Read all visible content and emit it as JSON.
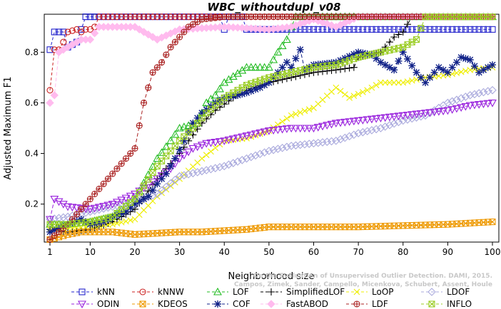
{
  "chart_data": {
    "type": "line",
    "title": "WBC_withoutdupl_v08",
    "xlabel": "Neighborhood size",
    "ylabel": "Adjusted Maximum F1",
    "xlim": [
      1,
      100
    ],
    "ylim": [
      0.05,
      0.95
    ],
    "xticks": [
      1,
      10,
      20,
      30,
      40,
      50,
      60,
      70,
      80,
      90,
      100
    ],
    "yticks": [
      0.2,
      0.4,
      0.6,
      0.8
    ],
    "legend_position": "bottom",
    "watermark": [
      "Campos, Zimek, Sander, Campello, Micenkova, Schubert, Assent, Houle",
      "On the Evaluation of Unsupervised Outlier Detection. DAMI, 2015."
    ],
    "series": [
      {
        "name": "kNN",
        "color": "#2222cc",
        "marker": "square",
        "dash": "4,3",
        "points": [
          [
            1,
            0.81
          ],
          [
            2,
            0.88
          ],
          [
            4,
            0.88
          ],
          [
            5,
            0.82
          ],
          [
            7,
            0.84
          ],
          [
            8,
            0.89
          ],
          [
            9,
            0.94
          ],
          [
            39,
            0.94
          ],
          [
            40,
            0.89
          ],
          [
            41,
            0.94
          ],
          [
            44,
            0.94
          ],
          [
            45,
            0.89
          ],
          [
            100,
            0.89
          ]
        ]
      },
      {
        "name": "kNNW",
        "color": "#cc2222",
        "marker": "circle",
        "dash": "4,3",
        "points": [
          [
            1,
            0.65
          ],
          [
            2,
            0.81
          ],
          [
            3,
            0.81
          ],
          [
            4,
            0.84
          ],
          [
            5,
            0.88
          ],
          [
            7,
            0.89
          ],
          [
            8,
            0.88
          ],
          [
            9,
            0.89
          ],
          [
            10,
            0.89
          ],
          [
            11,
            0.9
          ],
          [
            12,
            0.94
          ],
          [
            100,
            0.94
          ]
        ]
      },
      {
        "name": "LOF",
        "color": "#22bb22",
        "marker": "triangle-up",
        "dash": "5,3",
        "points": [
          [
            1,
            0.12
          ],
          [
            5,
            0.12
          ],
          [
            10,
            0.13
          ],
          [
            15,
            0.15
          ],
          [
            20,
            0.22
          ],
          [
            25,
            0.38
          ],
          [
            28,
            0.45
          ],
          [
            30,
            0.5
          ],
          [
            34,
            0.52
          ],
          [
            36,
            0.6
          ],
          [
            38,
            0.63
          ],
          [
            40,
            0.68
          ],
          [
            45,
            0.74
          ],
          [
            50,
            0.74
          ],
          [
            52,
            0.8
          ],
          [
            54,
            0.85
          ],
          [
            55,
            0.9
          ],
          [
            56,
            0.94
          ],
          [
            100,
            0.94
          ]
        ]
      },
      {
        "name": "SimplifiedLOF",
        "color": "#000000",
        "marker": "plus",
        "dash": "5,3",
        "points": [
          [
            1,
            0.1
          ],
          [
            5,
            0.09
          ],
          [
            10,
            0.1
          ],
          [
            15,
            0.13
          ],
          [
            20,
            0.18
          ],
          [
            25,
            0.3
          ],
          [
            28,
            0.36
          ],
          [
            30,
            0.4
          ],
          [
            32,
            0.45
          ],
          [
            35,
            0.52
          ],
          [
            38,
            0.57
          ],
          [
            42,
            0.62
          ],
          [
            45,
            0.65
          ],
          [
            50,
            0.68
          ],
          [
            55,
            0.7
          ],
          [
            60,
            0.72
          ],
          [
            65,
            0.73
          ],
          [
            69,
            0.74
          ],
          [
            70,
            0.78
          ],
          [
            75,
            0.8
          ],
          [
            78,
            0.86
          ],
          [
            80,
            0.88
          ],
          [
            82,
            0.94
          ],
          [
            100,
            0.94
          ]
        ]
      },
      {
        "name": "LoOP",
        "color": "#eeee00",
        "marker": "cross",
        "dash": "5,3",
        "points": [
          [
            1,
            0.1
          ],
          [
            10,
            0.11
          ],
          [
            15,
            0.12
          ],
          [
            20,
            0.14
          ],
          [
            25,
            0.23
          ],
          [
            30,
            0.3
          ],
          [
            35,
            0.38
          ],
          [
            40,
            0.45
          ],
          [
            45,
            0.46
          ],
          [
            50,
            0.49
          ],
          [
            55,
            0.55
          ],
          [
            60,
            0.58
          ],
          [
            65,
            0.66
          ],
          [
            68,
            0.62
          ],
          [
            72,
            0.65
          ],
          [
            75,
            0.68
          ],
          [
            80,
            0.68
          ],
          [
            85,
            0.7
          ],
          [
            90,
            0.71
          ],
          [
            95,
            0.73
          ],
          [
            100,
            0.74
          ]
        ]
      },
      {
        "name": "LDOF",
        "color": "#aaaadd",
        "marker": "diamond",
        "dash": "5,3",
        "points": [
          [
            1,
            0.14
          ],
          [
            5,
            0.15
          ],
          [
            10,
            0.17
          ],
          [
            15,
            0.19
          ],
          [
            20,
            0.21
          ],
          [
            25,
            0.24
          ],
          [
            30,
            0.31
          ],
          [
            35,
            0.33
          ],
          [
            40,
            0.35
          ],
          [
            45,
            0.38
          ],
          [
            50,
            0.41
          ],
          [
            55,
            0.43
          ],
          [
            60,
            0.44
          ],
          [
            65,
            0.45
          ],
          [
            70,
            0.48
          ],
          [
            75,
            0.5
          ],
          [
            80,
            0.53
          ],
          [
            85,
            0.55
          ],
          [
            90,
            0.6
          ],
          [
            95,
            0.63
          ],
          [
            100,
            0.65
          ]
        ]
      },
      {
        "name": "ODIN",
        "color": "#9922dd",
        "marker": "triangle-down",
        "dash": "5,3",
        "points": [
          [
            1,
            0.14
          ],
          [
            2,
            0.22
          ],
          [
            5,
            0.19
          ],
          [
            10,
            0.18
          ],
          [
            15,
            0.2
          ],
          [
            20,
            0.24
          ],
          [
            25,
            0.3
          ],
          [
            28,
            0.34
          ],
          [
            30,
            0.38
          ],
          [
            33,
            0.42
          ],
          [
            36,
            0.44
          ],
          [
            40,
            0.45
          ],
          [
            45,
            0.47
          ],
          [
            50,
            0.49
          ],
          [
            55,
            0.5
          ],
          [
            60,
            0.5
          ],
          [
            65,
            0.52
          ],
          [
            70,
            0.53
          ],
          [
            75,
            0.54
          ],
          [
            80,
            0.55
          ],
          [
            85,
            0.56
          ],
          [
            90,
            0.57
          ],
          [
            95,
            0.59
          ],
          [
            100,
            0.6
          ]
        ]
      },
      {
        "name": "KDEOS",
        "color": "#ee9900",
        "marker": "x-square",
        "dash": "5,3",
        "points": [
          [
            1,
            0.06
          ],
          [
            3,
            0.07
          ],
          [
            5,
            0.08
          ],
          [
            8,
            0.09
          ],
          [
            15,
            0.09
          ],
          [
            20,
            0.08
          ],
          [
            25,
            0.085
          ],
          [
            30,
            0.09
          ],
          [
            35,
            0.09
          ],
          [
            40,
            0.095
          ],
          [
            45,
            0.1
          ],
          [
            50,
            0.11
          ],
          [
            55,
            0.11
          ],
          [
            60,
            0.11
          ],
          [
            70,
            0.11
          ],
          [
            80,
            0.115
          ],
          [
            90,
            0.12
          ],
          [
            100,
            0.13
          ]
        ]
      },
      {
        "name": "COF",
        "color": "#112288",
        "marker": "asterisk",
        "dash": "5,3",
        "points": [
          [
            1,
            0.09
          ],
          [
            5,
            0.12
          ],
          [
            8,
            0.14
          ],
          [
            10,
            0.12
          ],
          [
            13,
            0.13
          ],
          [
            15,
            0.15
          ],
          [
            18,
            0.17
          ],
          [
            20,
            0.2
          ],
          [
            23,
            0.23
          ],
          [
            25,
            0.28
          ],
          [
            27,
            0.32
          ],
          [
            29,
            0.38
          ],
          [
            31,
            0.45
          ],
          [
            33,
            0.52
          ],
          [
            35,
            0.56
          ],
          [
            38,
            0.6
          ],
          [
            40,
            0.62
          ],
          [
            43,
            0.63
          ],
          [
            45,
            0.64
          ],
          [
            48,
            0.66
          ],
          [
            50,
            0.68
          ],
          [
            52,
            0.72
          ],
          [
            54,
            0.76
          ],
          [
            55,
            0.74
          ],
          [
            57,
            0.81
          ],
          [
            58,
            0.73
          ],
          [
            60,
            0.75
          ],
          [
            65,
            0.76
          ],
          [
            70,
            0.8
          ],
          [
            73,
            0.79
          ],
          [
            75,
            0.76
          ],
          [
            78,
            0.73
          ],
          [
            80,
            0.8
          ],
          [
            83,
            0.72
          ],
          [
            85,
            0.68
          ],
          [
            88,
            0.74
          ],
          [
            90,
            0.72
          ],
          [
            93,
            0.78
          ],
          [
            95,
            0.77
          ],
          [
            97,
            0.72
          ],
          [
            100,
            0.75
          ]
        ]
      },
      {
        "name": "FastABOD",
        "color": "#ffbbee",
        "marker": "diamond-filled",
        "dash": "5,3",
        "points": [
          [
            1,
            0.6
          ],
          [
            2,
            0.63
          ],
          [
            3,
            0.8
          ],
          [
            5,
            0.82
          ],
          [
            8,
            0.85
          ],
          [
            10,
            0.85
          ],
          [
            12,
            0.9
          ],
          [
            20,
            0.9
          ],
          [
            25,
            0.85
          ],
          [
            30,
            0.89
          ],
          [
            40,
            0.9
          ],
          [
            50,
            0.89
          ],
          [
            55,
            0.9
          ],
          [
            60,
            0.93
          ],
          [
            65,
            0.9
          ],
          [
            70,
            0.94
          ],
          [
            100,
            0.94
          ]
        ]
      },
      {
        "name": "LDF",
        "color": "#aa2222",
        "marker": "circle-plus",
        "dash": "5,3",
        "points": [
          [
            1,
            0.06
          ],
          [
            3,
            0.09
          ],
          [
            5,
            0.12
          ],
          [
            8,
            0.18
          ],
          [
            10,
            0.22
          ],
          [
            13,
            0.28
          ],
          [
            15,
            0.32
          ],
          [
            18,
            0.38
          ],
          [
            20,
            0.42
          ],
          [
            22,
            0.6
          ],
          [
            24,
            0.72
          ],
          [
            26,
            0.76
          ],
          [
            28,
            0.82
          ],
          [
            30,
            0.86
          ],
          [
            32,
            0.9
          ],
          [
            35,
            0.93
          ],
          [
            40,
            0.94
          ],
          [
            100,
            0.94
          ]
        ]
      },
      {
        "name": "INFLO",
        "color": "#99cc22",
        "marker": "x-square",
        "dash": "5,3",
        "points": [
          [
            1,
            0.12
          ],
          [
            5,
            0.12
          ],
          [
            10,
            0.13
          ],
          [
            15,
            0.15
          ],
          [
            20,
            0.22
          ],
          [
            25,
            0.35
          ],
          [
            30,
            0.45
          ],
          [
            33,
            0.5
          ],
          [
            36,
            0.56
          ],
          [
            40,
            0.62
          ],
          [
            45,
            0.67
          ],
          [
            50,
            0.7
          ],
          [
            55,
            0.72
          ],
          [
            60,
            0.74
          ],
          [
            65,
            0.75
          ],
          [
            70,
            0.78
          ],
          [
            75,
            0.8
          ],
          [
            80,
            0.82
          ],
          [
            83,
            0.85
          ],
          [
            85,
            0.94
          ],
          [
            100,
            0.94
          ]
        ]
      }
    ]
  }
}
